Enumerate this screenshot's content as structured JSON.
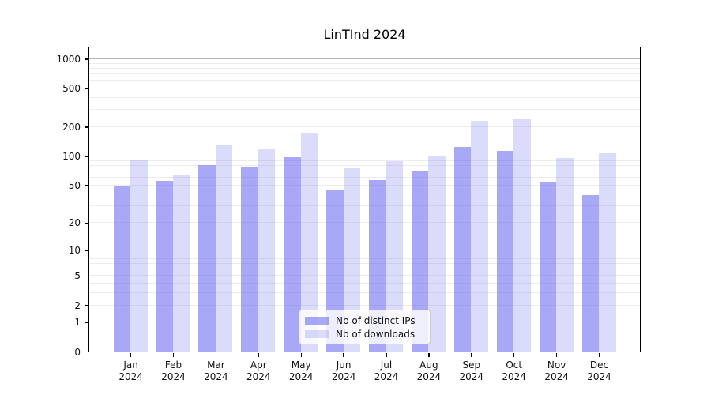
{
  "figure": {
    "title": "LinTInd 2024"
  },
  "chart_data": {
    "type": "bar",
    "title": "LinTInd 2024",
    "categories": [
      "Jan",
      "Feb",
      "Mar",
      "Apr",
      "May",
      "Jun",
      "Jul",
      "Aug",
      "Sep",
      "Oct",
      "Nov",
      "Dec"
    ],
    "category_year": "2024",
    "series": [
      {
        "name": "Nb of distinct IPs",
        "color": "rgba(110,110,240,0.6)",
        "values": [
          49,
          55,
          80,
          77,
          98,
          45,
          56,
          70,
          125,
          112,
          54,
          39
        ]
      },
      {
        "name": "Nb of downloads",
        "color": "rgba(110,110,240,0.25)",
        "values": [
          92,
          63,
          128,
          118,
          175,
          74,
          88,
          100,
          230,
          240,
          96,
          107
        ]
      }
    ],
    "yscale": "log1p",
    "ylim": [
      0,
      1300
    ],
    "yticks": [
      0,
      1,
      2,
      5,
      10,
      20,
      50,
      100,
      200,
      500,
      1000
    ],
    "major_gridlines": [
      1,
      10,
      100,
      1000
    ],
    "minor_gridlines": [
      2,
      3,
      4,
      5,
      6,
      7,
      8,
      9,
      20,
      30,
      40,
      50,
      60,
      70,
      80,
      90,
      200,
      300,
      400,
      500,
      600,
      700,
      800,
      900
    ],
    "grid": "horizontal only",
    "legend_position": "lower center",
    "colors": {
      "ips_bar": "rgba(110,110,240,0.6)",
      "downloads_bar": "rgba(110,110,240,0.25)",
      "major_grid": "#b5b5b5",
      "minor_grid": "#ececec",
      "spine": "#000000"
    }
  }
}
